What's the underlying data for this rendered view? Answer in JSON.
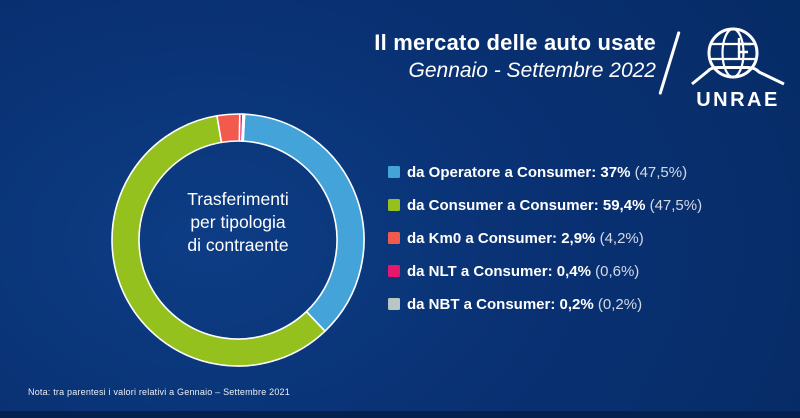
{
  "header": {
    "title": "Il mercato delle auto usate",
    "subtitle": "Gennaio - Settembre 2022",
    "brand": "UNRAE"
  },
  "theme": {
    "background_center": "#0d3d85",
    "background_edge": "#062b65",
    "text": "#ffffff"
  },
  "chart_data": {
    "type": "pie",
    "donut": true,
    "title": "Trasferimenti per tipologia di contraente",
    "center_label_lines": [
      "Trasferimenti",
      "per tipologia",
      "di contraente"
    ],
    "categories": [
      "da Operatore a Consumer",
      "da Consumer a Consumer",
      "da Km0 a Consumer",
      "da NLT a Consumer",
      "da NBT a Consumer"
    ],
    "values": [
      37,
      59.4,
      2.9,
      0.4,
      0.2
    ],
    "values_prev_year": [
      47.5,
      47.5,
      4.2,
      0.6,
      0.2
    ],
    "colors": [
      "#44a4da",
      "#95c11f",
      "#f25a4e",
      "#e6176d",
      "#b9c7c4"
    ],
    "start_angle_deg": 3,
    "legend_position": "right",
    "period": "Gennaio - Settembre 2022",
    "period_prev": "Gennaio – Settembre 2021"
  },
  "legend": {
    "items": [
      {
        "text_bold": "da Operatore a Consumer: 37%",
        "text_paren": "(47,5%)",
        "color": "#44a4da"
      },
      {
        "text_bold": "da Consumer a Consumer: 59,4%",
        "text_paren": "(47,5%)",
        "color": "#95c11f"
      },
      {
        "text_bold": "da Km0 a Consumer: 2,9%",
        "text_paren": "(4,2%)",
        "color": "#f25a4e"
      },
      {
        "text_bold": "da NLT a Consumer: 0,4%",
        "text_paren": "(0,6%)",
        "color": "#e6176d"
      },
      {
        "text_bold": "da NBT a Consumer: 0,2%",
        "text_paren": "(0,2%)",
        "color": "#b9c7c4"
      }
    ]
  },
  "footer": {
    "note": "Nota: tra parentesi i valori relativi a Gennaio – Settembre 2021"
  }
}
